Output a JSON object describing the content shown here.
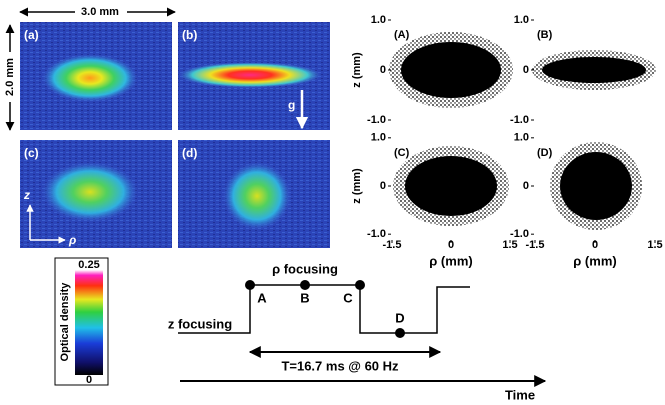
{
  "images": {
    "width_label": "3.0 mm",
    "height_label": "2.0 mm",
    "gravity_label": "g",
    "axis_z": "z",
    "axis_rho": "ρ",
    "panels": [
      "(a)",
      "(b)",
      "(c)",
      "(d)"
    ]
  },
  "scatter": {
    "panels": [
      "(A)",
      "(B)",
      "(C)",
      "(D)"
    ],
    "ylabel": "z (mm)",
    "xlabel": "ρ (mm)",
    "xlim": [
      -1.5,
      1.5
    ],
    "ylim": [
      -1.1,
      1.1
    ],
    "xticks": [
      {
        "value": -1.5,
        "label": "-1.5"
      },
      0,
      {
        "value": 1.5,
        "label": "1.5"
      }
    ],
    "yticks": [
      {
        "value": 1,
        "label": "1.0"
      },
      0,
      {
        "value": -1,
        "label": "-1.0"
      }
    ]
  },
  "colorbar": {
    "label": "Optical density",
    "max_label": "0.25",
    "min_label": "0"
  },
  "timing": {
    "rho_label": "ρ focusing",
    "z_label": "z focusing",
    "points": [
      "A",
      "B",
      "C",
      "D"
    ],
    "period_label": "T=16.7 ms @ 60 Hz",
    "time_label": "Time"
  }
}
